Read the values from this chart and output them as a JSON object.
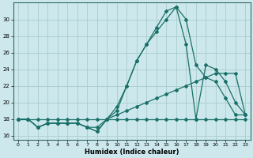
{
  "xlabel": "Humidex (Indice chaleur)",
  "background_color": "#cce8ec",
  "grid_color": "#aacccc",
  "line_color": "#1a7068",
  "xlim": [
    -0.5,
    23.5
  ],
  "ylim": [
    15.5,
    32.0
  ],
  "xticks": [
    0,
    1,
    2,
    3,
    4,
    5,
    6,
    7,
    8,
    9,
    10,
    11,
    12,
    13,
    14,
    15,
    16,
    17,
    18,
    19,
    20,
    21,
    22,
    23
  ],
  "yticks": [
    16,
    18,
    20,
    22,
    24,
    26,
    28,
    30
  ],
  "line1_x": [
    0,
    1,
    2,
    3,
    4,
    5,
    6,
    7,
    8,
    9,
    10,
    11,
    12,
    13,
    14,
    15,
    16,
    17,
    18,
    19,
    20,
    21,
    22,
    23
  ],
  "line1_y": [
    18,
    18,
    18,
    18,
    18,
    18,
    18,
    18,
    18,
    18,
    18,
    18,
    18,
    18,
    18,
    18,
    18,
    18,
    18,
    18,
    18,
    18,
    18,
    18
  ],
  "line2_x": [
    0,
    1,
    2,
    3,
    4,
    5,
    6,
    7,
    8,
    9,
    10,
    11,
    12,
    13,
    14,
    15,
    16,
    17,
    18,
    19,
    20,
    21,
    22,
    23
  ],
  "line2_y": [
    18,
    18,
    17,
    17.5,
    17.5,
    17.5,
    17.5,
    17,
    16.5,
    18,
    18.5,
    19,
    19.5,
    20,
    20.5,
    21,
    21.5,
    22,
    22.5,
    23,
    23.5,
    23.5,
    23.5,
    18.5
  ],
  "line3_x": [
    0,
    1,
    2,
    3,
    4,
    5,
    6,
    7,
    8,
    9,
    10,
    11,
    12,
    13,
    14,
    15,
    16,
    17,
    18,
    19,
    20,
    21,
    22,
    23
  ],
  "line3_y": [
    18,
    18,
    17,
    17.5,
    17.5,
    17.5,
    17.5,
    17,
    17,
    18,
    19.5,
    22,
    25,
    27,
    28.5,
    30,
    31.5,
    30,
    24.5,
    23,
    22.5,
    20.5,
    18.5,
    18.5
  ],
  "line4_x": [
    0,
    1,
    2,
    3,
    4,
    5,
    6,
    7,
    8,
    9,
    10,
    11,
    12,
    13,
    14,
    15,
    16,
    17,
    18,
    19,
    20,
    21,
    22,
    23
  ],
  "line4_y": [
    18,
    18,
    17,
    17.5,
    17.5,
    17.5,
    17.5,
    17,
    16.5,
    18,
    19,
    22,
    25,
    27,
    29,
    31,
    31.5,
    27,
    18,
    24.5,
    24,
    22.5,
    20,
    18.5
  ]
}
